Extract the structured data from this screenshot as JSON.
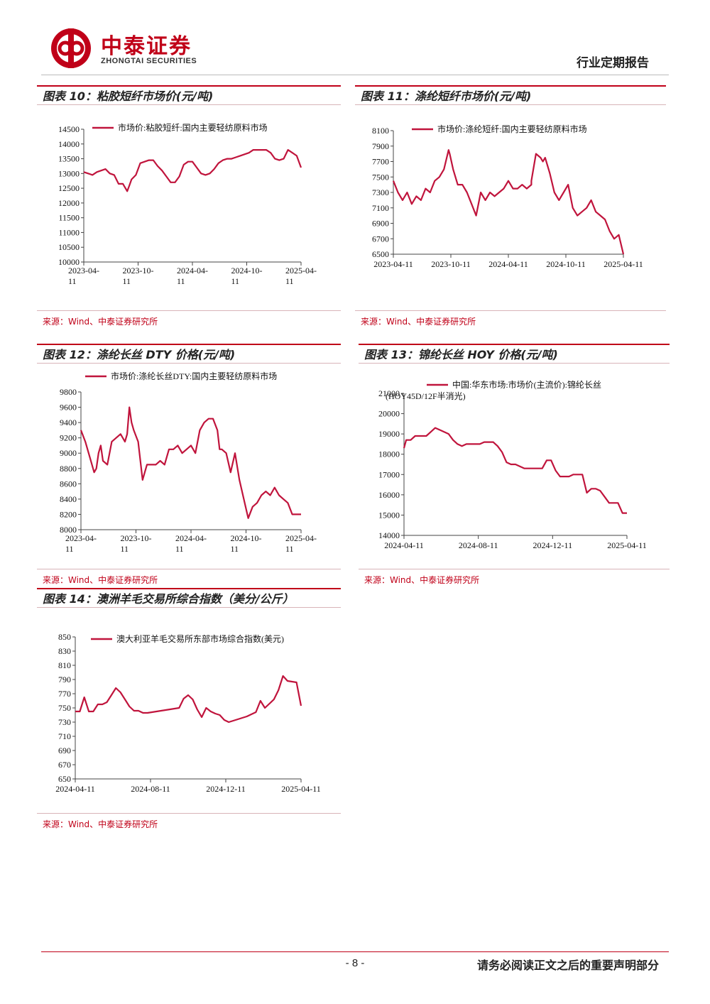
{
  "header": {
    "logo_cn": "中泰证券",
    "logo_en": "ZHONGTAI SECURITIES",
    "report_type": "行业定期报告"
  },
  "colors": {
    "brand_red": "#c00018",
    "series": "#c0143c"
  },
  "charts": [
    {
      "title": "图表 10：粘胶短纤市场价(元/吨)",
      "source": "来源：Wind、中泰证券研究所",
      "chart_data": {
        "type": "line",
        "legend": "市场价:粘胶短纤:国内主要轻纺原料市场",
        "x_ticks": [
          "2023-04-11",
          "2023-10-11",
          "2024-04-11",
          "2024-10-11",
          "2025-04-11"
        ],
        "y_ticks": [
          10000,
          10500,
          11000,
          11500,
          12000,
          12500,
          13000,
          13500,
          14000,
          14500
        ],
        "ylim": [
          10000,
          14500
        ],
        "x": [
          0,
          0.02,
          0.04,
          0.06,
          0.08,
          0.1,
          0.12,
          0.14,
          0.16,
          0.18,
          0.2,
          0.21,
          0.22,
          0.24,
          0.26,
          0.28,
          0.3,
          0.32,
          0.34,
          0.36,
          0.38,
          0.4,
          0.42,
          0.44,
          0.46,
          0.48,
          0.5,
          0.52,
          0.54,
          0.56,
          0.58,
          0.6,
          0.62,
          0.64,
          0.66,
          0.68,
          0.7,
          0.72,
          0.74,
          0.76,
          0.78,
          0.8,
          0.82,
          0.84,
          0.86,
          0.88,
          0.9,
          0.92,
          0.94,
          0.96,
          0.98,
          1
        ],
        "values": [
          13050,
          13000,
          12950,
          13050,
          13100,
          13150,
          13000,
          12950,
          12650,
          12650,
          12400,
          12600,
          12800,
          12950,
          13350,
          13400,
          13450,
          13450,
          13250,
          13100,
          12900,
          12700,
          12700,
          12900,
          13300,
          13400,
          13400,
          13200,
          13000,
          12950,
          13000,
          13150,
          13350,
          13450,
          13500,
          13500,
          13550,
          13600,
          13650,
          13700,
          13800,
          13800,
          13800,
          13800,
          13700,
          13500,
          13450,
          13500,
          13800,
          13700,
          13600,
          13200
        ]
      }
    },
    {
      "title": "图表 11：涤纶短纤市场价(元/吨)",
      "source": "来源：Wind、中泰证券研究所",
      "chart_data": {
        "type": "line",
        "legend": "市场价:涤纶短纤:国内主要轻纺原料市场",
        "x_ticks": [
          "2023-04-11",
          "2023-10-11",
          "2024-04-11",
          "2024-10-11",
          "2025-04-11"
        ],
        "y_ticks": [
          6500,
          6700,
          6900,
          7100,
          7300,
          7500,
          7700,
          7900,
          8100
        ],
        "ylim": [
          6500,
          8100
        ],
        "x": [
          0,
          0.02,
          0.04,
          0.06,
          0.08,
          0.1,
          0.12,
          0.14,
          0.16,
          0.18,
          0.2,
          0.22,
          0.24,
          0.245,
          0.26,
          0.28,
          0.3,
          0.32,
          0.34,
          0.36,
          0.38,
          0.4,
          0.42,
          0.44,
          0.46,
          0.48,
          0.5,
          0.52,
          0.54,
          0.56,
          0.58,
          0.6,
          0.6,
          0.62,
          0.64,
          0.65,
          0.66,
          0.68,
          0.7,
          0.72,
          0.74,
          0.76,
          0.78,
          0.8,
          0.82,
          0.84,
          0.86,
          0.88,
          0.9,
          0.92,
          0.94,
          0.96,
          0.98,
          1
        ],
        "values": [
          7450,
          7300,
          7200,
          7300,
          7150,
          7250,
          7200,
          7350,
          7300,
          7450,
          7500,
          7600,
          7850,
          7800,
          7600,
          7400,
          7400,
          7300,
          7150,
          7000,
          7300,
          7200,
          7300,
          7250,
          7300,
          7350,
          7450,
          7350,
          7350,
          7400,
          7350,
          7400,
          7450,
          7800,
          7750,
          7700,
          7750,
          7550,
          7300,
          7200,
          7300,
          7400,
          7100,
          7000,
          7050,
          7100,
          7200,
          7050,
          7000,
          6950,
          6800,
          6700,
          6750,
          6500
        ]
      }
    },
    {
      "title": "图表 12：涤纶长丝 DTY 价格(元/吨)",
      "source": "来源：Wind、中泰证券研究所",
      "chart_data": {
        "type": "line",
        "legend": "市场价:涤纶长丝DTY:国内主要轻纺原料市场",
        "x_ticks": [
          "2023-04-11",
          "2023-10-11",
          "2024-04-11",
          "2024-10-11",
          "2025-04-11"
        ],
        "y_ticks": [
          8000,
          8200,
          8400,
          8600,
          8800,
          9000,
          9200,
          9400,
          9600,
          9800
        ],
        "ylim": [
          8000,
          9800
        ],
        "x": [
          0,
          0.02,
          0.04,
          0.06,
          0.07,
          0.08,
          0.09,
          0.1,
          0.12,
          0.14,
          0.16,
          0.18,
          0.2,
          0.21,
          0.22,
          0.23,
          0.24,
          0.26,
          0.28,
          0.29,
          0.3,
          0.32,
          0.34,
          0.36,
          0.38,
          0.4,
          0.42,
          0.44,
          0.46,
          0.48,
          0.5,
          0.52,
          0.54,
          0.56,
          0.58,
          0.6,
          0.62,
          0.63,
          0.64,
          0.66,
          0.68,
          0.7,
          0.72,
          0.74,
          0.76,
          0.78,
          0.8,
          0.82,
          0.84,
          0.86,
          0.88,
          0.9,
          0.92,
          0.94,
          0.96,
          0.98,
          1
        ],
        "values": [
          9300,
          9150,
          8950,
          8750,
          8800,
          9000,
          9100,
          8900,
          8850,
          9150,
          9200,
          9250,
          9150,
          9250,
          9600,
          9400,
          9300,
          9150,
          8650,
          8750,
          8850,
          8850,
          8850,
          8900,
          8850,
          9050,
          9050,
          9100,
          9000,
          9050,
          9100,
          9000,
          9300,
          9400,
          9450,
          9450,
          9300,
          9050,
          9050,
          9000,
          8750,
          9000,
          8650,
          8400,
          8150,
          8300,
          8350,
          8450,
          8500,
          8450,
          8550,
          8450,
          8400,
          8350,
          8200,
          8200,
          8200
        ]
      }
    },
    {
      "title": "图表 13：锦纶长丝 HOY 价格(元/吨)",
      "source": "来源：Wind、中泰证券研究所",
      "chart_data": {
        "type": "line",
        "legend": "中国:华东市场:市场价(主流价):锦纶长丝(HOY45D/12F半消光)",
        "x_ticks": [
          "2024-04-11",
          "2024-08-11",
          "2024-12-11",
          "2025-04-11"
        ],
        "y_ticks": [
          14000,
          15000,
          16000,
          17000,
          18000,
          19000,
          20000,
          21000
        ],
        "ylim": [
          14000,
          21000
        ],
        "x": [
          0,
          0.01,
          0.03,
          0.05,
          0.08,
          0.1,
          0.12,
          0.14,
          0.16,
          0.18,
          0.2,
          0.22,
          0.24,
          0.26,
          0.28,
          0.3,
          0.32,
          0.34,
          0.36,
          0.38,
          0.4,
          0.42,
          0.44,
          0.46,
          0.48,
          0.5,
          0.52,
          0.54,
          0.56,
          0.58,
          0.6,
          0.62,
          0.64,
          0.66,
          0.68,
          0.7,
          0.72,
          0.74,
          0.76,
          0.78,
          0.8,
          0.82,
          0.84,
          0.86,
          0.88,
          0.9,
          0.92,
          0.94,
          0.96,
          0.98,
          1
        ],
        "values": [
          18300,
          18700,
          18700,
          18900,
          18900,
          18900,
          19100,
          19300,
          19200,
          19100,
          19000,
          18700,
          18500,
          18400,
          18500,
          18500,
          18500,
          18500,
          18600,
          18600,
          18600,
          18400,
          18100,
          17600,
          17500,
          17500,
          17400,
          17300,
          17300,
          17300,
          17300,
          17300,
          17700,
          17700,
          17200,
          16900,
          16900,
          16900,
          17000,
          17000,
          17000,
          16100,
          16300,
          16300,
          16200,
          15900,
          15600,
          15600,
          15600,
          15100,
          15100
        ]
      }
    },
    {
      "title": "图表 14：澳洲羊毛交易所综合指数（美分/公斤）",
      "source": "来源：Wind、中泰证券研究所",
      "chart_data": {
        "type": "line",
        "legend": "澳大利亚羊毛交易所东部市场综合指数(美元)",
        "x_ticks": [
          "2024-04-11",
          "2024-08-11",
          "2024-12-11",
          "2025-04-11"
        ],
        "y_ticks": [
          650,
          670,
          690,
          710,
          730,
          750,
          770,
          790,
          810,
          830,
          850
        ],
        "ylim": [
          650,
          850
        ],
        "x": [
          0,
          0.02,
          0.04,
          0.06,
          0.08,
          0.1,
          0.12,
          0.14,
          0.16,
          0.18,
          0.2,
          0.22,
          0.24,
          0.26,
          0.28,
          0.3,
          0.32,
          0.34,
          0.36,
          0.38,
          0.4,
          0.42,
          0.44,
          0.46,
          0.48,
          0.5,
          0.52,
          0.54,
          0.56,
          0.58,
          0.6,
          0.62,
          0.64,
          0.66,
          0.68,
          0.7,
          0.72,
          0.74,
          0.76,
          0.78,
          0.8,
          0.82,
          0.84,
          0.86,
          0.88,
          0.9,
          0.92,
          0.94,
          0.96,
          0.98,
          1
        ],
        "values": [
          745,
          745,
          765,
          745,
          745,
          755,
          755,
          758,
          768,
          778,
          772,
          762,
          752,
          746,
          746,
          743,
          743,
          744,
          745,
          746,
          747,
          748,
          749,
          750,
          763,
          768,
          762,
          748,
          737,
          750,
          745,
          742,
          740,
          733,
          730,
          732,
          734,
          736,
          738,
          741,
          744,
          760,
          750,
          756,
          762,
          775,
          795,
          788,
          787,
          786,
          753
        ]
      }
    }
  ],
  "footer": {
    "page_number": "- 8 -",
    "disclaimer": "请务必阅读正文之后的重要声明部分"
  }
}
